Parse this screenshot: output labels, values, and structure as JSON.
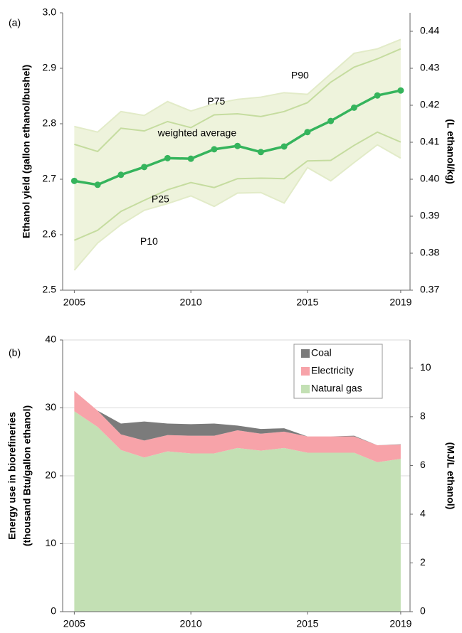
{
  "chart_data": [
    {
      "type": "line",
      "label": "(a)",
      "ylabel": "Ethanol yield (gallon  ethanol/bushel)",
      "y2label": "(L ethanol/kg)",
      "x": [
        2005,
        2006,
        2007,
        2008,
        2009,
        2010,
        2011,
        2012,
        2013,
        2014,
        2015,
        2016,
        2017,
        2018,
        2019
      ],
      "xlim": [
        2004.5,
        2019.4
      ],
      "xticks": [
        2005,
        2010,
        2015,
        2019
      ],
      "ylim": [
        2.5,
        3.0
      ],
      "yticks": [
        2.5,
        2.6,
        2.7,
        2.8,
        2.9,
        {
          "value": 3,
          "label": "3.0"
        }
      ],
      "y2lim": [
        0.37,
        0.445
      ],
      "y2ticks": [
        0.37,
        0.38,
        0.39,
        {
          "value": 0.4,
          "label": "0.40"
        },
        0.41,
        0.42,
        0.43,
        0.44
      ],
      "band_color": "#eef3dc",
      "series": [
        {
          "name": "P90",
          "color": "#e2ebc8",
          "values": [
            2.795,
            2.785,
            2.822,
            2.815,
            2.84,
            2.823,
            2.836,
            2.844,
            2.848,
            2.856,
            2.853,
            2.89,
            2.927,
            2.935,
            2.952
          ]
        },
        {
          "name": "P75",
          "color": "#c5dc9f",
          "values": [
            2.763,
            2.75,
            2.792,
            2.787,
            2.804,
            2.793,
            2.816,
            2.818,
            2.813,
            2.822,
            2.838,
            2.875,
            2.902,
            2.917,
            2.935
          ]
        },
        {
          "name": "weighted average",
          "color": "#35b45c",
          "values": [
            2.697,
            2.69,
            2.708,
            2.722,
            2.738,
            2.737,
            2.754,
            2.76,
            2.749,
            2.759,
            2.785,
            2.805,
            2.829,
            2.851,
            2.86
          ]
        },
        {
          "name": "P25",
          "color": "#c5dc9f",
          "values": [
            2.59,
            2.608,
            2.642,
            2.662,
            2.681,
            2.694,
            2.685,
            2.701,
            2.702,
            2.701,
            2.733,
            2.734,
            2.761,
            2.785,
            2.767
          ]
        },
        {
          "name": "P10",
          "color": "#e2ebc8",
          "values": [
            2.536,
            2.585,
            2.618,
            2.644,
            2.656,
            2.67,
            2.651,
            2.675,
            2.676,
            2.657,
            2.721,
            2.697,
            2.73,
            2.762,
            2.738
          ]
        }
      ]
    },
    {
      "type": "stacked_area",
      "label": "(b)",
      "ylabel": [
        "Energy use in biorefineries",
        "(thousand Btu/gallon ethanol)"
      ],
      "y2label": "(MJ/L ethanol)",
      "x": [
        2005,
        2006,
        2007,
        2008,
        2009,
        2010,
        2011,
        2012,
        2013,
        2014,
        2015,
        2016,
        2017,
        2018,
        2019
      ],
      "xlim": [
        2004.5,
        2019.4
      ],
      "xticks": [
        2005,
        2010,
        2015,
        2019
      ],
      "ylim": [
        0,
        40
      ],
      "yticks": [
        0,
        10,
        20,
        30,
        40
      ],
      "y2lim": [
        0,
        11.15
      ],
      "y2ticks": [
        0,
        2,
        4,
        6,
        8,
        10
      ],
      "grid": true,
      "legend": "upper right",
      "series": [
        {
          "name": "Natural gas",
          "color": "#c3e0b4",
          "values": [
            29.5,
            27.2,
            23.8,
            22.7,
            23.6,
            23.3,
            23.3,
            24.1,
            23.7,
            24.1,
            23.4,
            23.4,
            23.4,
            22.0,
            22.5
          ]
        },
        {
          "name": "Electricity",
          "color": "#f7a3a9",
          "values": [
            3.0,
            2.4,
            2.3,
            2.5,
            2.4,
            2.6,
            2.6,
            2.6,
            2.5,
            2.4,
            2.4,
            2.4,
            2.4,
            2.5,
            2.1
          ]
        },
        {
          "name": "Coal",
          "color": "#7b7b7b",
          "values": [
            0,
            0,
            1.6,
            2.8,
            1.7,
            1.7,
            1.8,
            0.7,
            0.7,
            0.5,
            0,
            0,
            0.1,
            0,
            0.05
          ]
        }
      ]
    }
  ]
}
